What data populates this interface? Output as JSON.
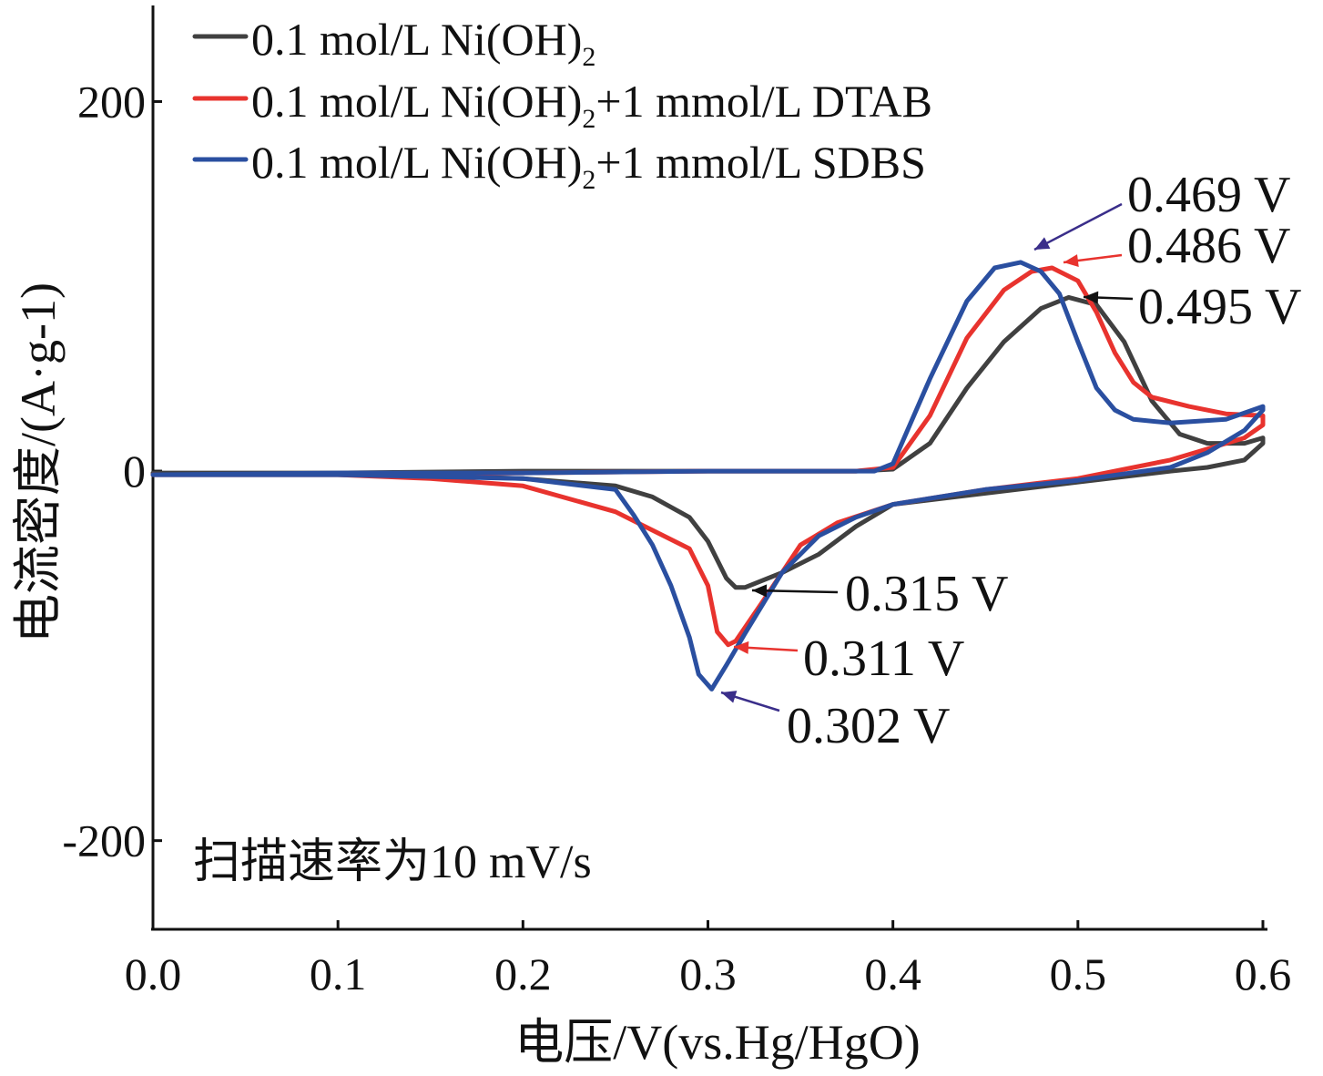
{
  "chart_data": {
    "type": "line",
    "xlabel": "电压/V(vs.Hg/HgO)",
    "ylabel": "电流密度/(A·g-1)",
    "xlim": [
      0.0,
      0.6
    ],
    "ylim": [
      -248,
      252
    ],
    "xticks": [
      "0.0",
      "0.1",
      "0.2",
      "0.3",
      "0.4",
      "0.5",
      "0.6"
    ],
    "yticks": [
      "200",
      "0",
      "-200"
    ],
    "annotation_note": "扫描速率为10 mV/s",
    "colors": {
      "series_0": "#404040",
      "series_1": "#e8332e",
      "series_2": "#2a4fa0"
    },
    "series": [
      {
        "name": "0.1 mol/L Ni(OH)2",
        "legend_main": "0.1 mol/L Ni(OH)",
        "legend_sub": "2",
        "legend_tail": "",
        "color": "#404040",
        "x": [
          0.0,
          0.1,
          0.2,
          0.3,
          0.38,
          0.4,
          0.42,
          0.44,
          0.46,
          0.48,
          0.495,
          0.51,
          0.525,
          0.54,
          0.555,
          0.57,
          0.59,
          0.6,
          0.6,
          0.59,
          0.57,
          0.55,
          0.5,
          0.45,
          0.4,
          0.38,
          0.36,
          0.34,
          0.32,
          0.315,
          0.31,
          0.3,
          0.29,
          0.27,
          0.25,
          0.2,
          0.1,
          0.0
        ],
        "y": [
          -1,
          -1,
          0,
          0,
          0,
          1,
          15,
          45,
          70,
          88,
          94,
          90,
          70,
          38,
          20,
          15,
          15,
          18,
          15,
          6,
          2,
          0,
          -6,
          -12,
          -18,
          -30,
          -45,
          -55,
          -63,
          -63,
          -58,
          -38,
          -25,
          -14,
          -8,
          -4,
          -1,
          -1
        ]
      },
      {
        "name": "0.1 mol/L Ni(OH)2+1 mmol/L DTAB",
        "legend_main": "0.1 mol/L Ni(OH)",
        "legend_sub": "2",
        "legend_tail": "+1 mmol/L DTAB",
        "color": "#e8332e",
        "x": [
          0.0,
          0.1,
          0.2,
          0.3,
          0.38,
          0.4,
          0.42,
          0.44,
          0.46,
          0.475,
          0.486,
          0.5,
          0.51,
          0.52,
          0.53,
          0.54,
          0.56,
          0.58,
          0.6,
          0.6,
          0.59,
          0.55,
          0.5,
          0.45,
          0.4,
          0.37,
          0.35,
          0.33,
          0.315,
          0.311,
          0.305,
          0.3,
          0.29,
          0.27,
          0.25,
          0.2,
          0.15,
          0.1,
          0.0
        ],
        "y": [
          -2,
          -2,
          -1,
          0,
          0,
          2,
          30,
          72,
          98,
          108,
          110,
          103,
          86,
          64,
          48,
          40,
          35,
          31,
          30,
          25,
          18,
          6,
          -4,
          -10,
          -18,
          -28,
          -40,
          -70,
          -92,
          -94,
          -87,
          -62,
          -42,
          -32,
          -22,
          -8,
          -4,
          -2,
          -2
        ]
      },
      {
        "name": "0.1 mol/L Ni(OH)2+1 mmol/L SDBS",
        "legend_main": "0.1 mol/L Ni(OH)",
        "legend_sub": "2",
        "legend_tail": "+1 mmol/L SDBS",
        "color": "#2a4fa0",
        "x": [
          0.0,
          0.1,
          0.2,
          0.3,
          0.38,
          0.39,
          0.4,
          0.42,
          0.44,
          0.455,
          0.469,
          0.48,
          0.49,
          0.5,
          0.51,
          0.52,
          0.53,
          0.55,
          0.58,
          0.6,
          0.6,
          0.59,
          0.57,
          0.55,
          0.5,
          0.45,
          0.4,
          0.38,
          0.36,
          0.34,
          0.32,
          0.31,
          0.302,
          0.295,
          0.29,
          0.28,
          0.27,
          0.26,
          0.25,
          0.2,
          0.1,
          0.0
        ],
        "y": [
          -2,
          -1,
          -1,
          0,
          0,
          0,
          4,
          50,
          92,
          110,
          113,
          108,
          96,
          70,
          45,
          33,
          28,
          26,
          28,
          35,
          33,
          22,
          10,
          2,
          -5,
          -10,
          -18,
          -25,
          -35,
          -55,
          -88,
          -105,
          -118,
          -110,
          -90,
          -62,
          -40,
          -24,
          -10,
          -4,
          -2,
          -2
        ]
      }
    ],
    "annotations": [
      {
        "text": "0.469 V",
        "peak_x": 0.469,
        "peak_y": 113,
        "series": 2
      },
      {
        "text": "0.486 V",
        "peak_x": 0.486,
        "peak_y": 110,
        "series": 1
      },
      {
        "text": "0.495 V",
        "peak_x": 0.495,
        "peak_y": 94,
        "series": 0
      },
      {
        "text": "0.315 V",
        "peak_x": 0.315,
        "peak_y": -63,
        "series": 0
      },
      {
        "text": "0.311 V",
        "peak_x": 0.311,
        "peak_y": -94,
        "series": 1
      },
      {
        "text": "0.302 V",
        "peak_x": 0.302,
        "peak_y": -118,
        "series": 2
      }
    ]
  }
}
